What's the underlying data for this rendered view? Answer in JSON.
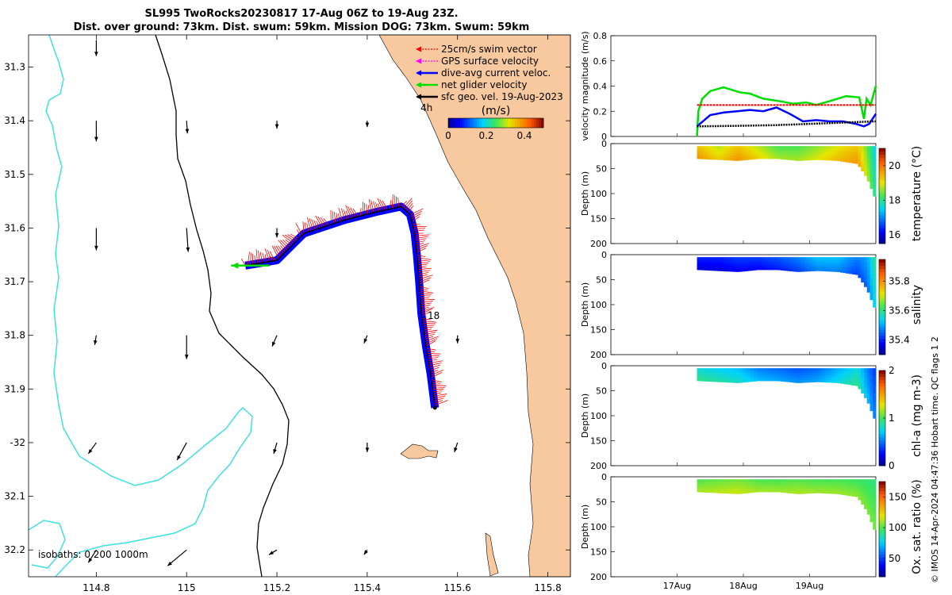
{
  "header": {
    "title_line1": "SL995 TwoRocks20230817 17-Aug 06Z to 19-Aug 23Z.",
    "title_line2": "Dist. over ground: 73km. Dist. swum: 59km. Mission DOG: 73km. Swum: 59km"
  },
  "credit": "© IMOS 14-Apr-2024 04:47:36 Hobart time. QC flags 1  2",
  "colors": {
    "land": "#f8c99e",
    "isobath_200": "#000000",
    "isobath_1000": "#3ee0e0",
    "swim": "#ff0000",
    "gps": "#ff00ff",
    "current": "#0000ff",
    "net": "#00dd00",
    "geo": "#000000"
  },
  "chart_data": [
    {
      "type": "map",
      "name": "glider track map",
      "lon_range": [
        114.65,
        115.85
      ],
      "lat_range": [
        -32.25,
        -31.24
      ],
      "x_ticks": [
        114.8,
        115,
        115.2,
        115.4,
        115.6,
        115.8
      ],
      "y_ticks": [
        -31.3,
        -31.4,
        -31.5,
        -31.6,
        -31.7,
        -31.8,
        -31.9,
        -32,
        -32.1,
        -32.2
      ],
      "y_tick_labels": [
        "31.3",
        "31.4",
        "31.5",
        "31.6",
        "31.7",
        "31.8",
        "31.9",
        "-32",
        "32.1",
        "32.2"
      ],
      "legend": [
        {
          "label": "25cm/s swim vector",
          "color": "#ff0000"
        },
        {
          "label": "GPS surface velocity",
          "color": "#ff00ff"
        },
        {
          "label": "dive-avg current veloc.",
          "color": "#0000ff"
        },
        {
          "label": "net glider velocity",
          "color": "#00dd00"
        },
        {
          "label": "sfc geo. vel. 19-Aug-2023",
          "color": "#000000"
        }
      ],
      "colorbar": {
        "title": "(m/s)",
        "range": [
          0,
          0.5
        ],
        "tick_values": [
          0,
          0.2,
          0.4
        ],
        "tick_labels": [
          "0",
          "0.2",
          "0.4"
        ]
      },
      "isobaths_label": "isobaths: 0   200  1000m",
      "track_labels": [
        "4h",
        "18"
      ],
      "track": [
        [
          115.13,
          -31.67
        ],
        [
          115.2,
          -31.66
        ],
        [
          115.26,
          -31.61
        ],
        [
          115.35,
          -31.585
        ],
        [
          115.42,
          -31.57
        ],
        [
          115.475,
          -31.56
        ],
        [
          115.495,
          -31.575
        ],
        [
          115.505,
          -31.61
        ],
        [
          115.51,
          -31.65
        ],
        [
          115.515,
          -31.7
        ],
        [
          115.52,
          -31.76
        ],
        [
          115.53,
          -31.82
        ],
        [
          115.54,
          -31.87
        ],
        [
          115.55,
          -31.935
        ]
      ],
      "geo_vectors": [
        {
          "lon": 114.8,
          "lat": -31.25,
          "u": 0,
          "v": -0.2
        },
        {
          "lon": 114.8,
          "lat": -31.4,
          "u": 0,
          "v": -0.26
        },
        {
          "lon": 115,
          "lat": -31.4,
          "u": 0.01,
          "v": -0.16
        },
        {
          "lon": 115.2,
          "lat": -31.4,
          "u": 0,
          "v": -0.1
        },
        {
          "lon": 115.4,
          "lat": -31.4,
          "u": 0,
          "v": -0.08
        },
        {
          "lon": 114.8,
          "lat": -31.6,
          "u": 0,
          "v": -0.28
        },
        {
          "lon": 115,
          "lat": -31.6,
          "u": 0.02,
          "v": -0.3
        },
        {
          "lon": 115.2,
          "lat": -31.6,
          "u": 0,
          "v": -0.12
        },
        {
          "lon": 114.8,
          "lat": -31.8,
          "u": -0.02,
          "v": -0.12
        },
        {
          "lon": 115,
          "lat": -31.8,
          "u": 0,
          "v": -0.3
        },
        {
          "lon": 115.2,
          "lat": -31.8,
          "u": -0.06,
          "v": -0.14
        },
        {
          "lon": 115.4,
          "lat": -31.8,
          "u": -0.04,
          "v": -0.1
        },
        {
          "lon": 115.6,
          "lat": -31.8,
          "u": 0,
          "v": -0.1
        },
        {
          "lon": 114.8,
          "lat": -32,
          "u": -0.1,
          "v": -0.14
        },
        {
          "lon": 115,
          "lat": -32,
          "u": -0.12,
          "v": -0.22
        },
        {
          "lon": 115.2,
          "lat": -32,
          "u": -0.04,
          "v": -0.14
        },
        {
          "lon": 115.4,
          "lat": -32,
          "u": 0,
          "v": -0.12
        },
        {
          "lon": 115.6,
          "lat": -32,
          "u": -0.04,
          "v": -0.12
        },
        {
          "lon": 114.8,
          "lat": -32.2,
          "u": -0.1,
          "v": -0.16
        },
        {
          "lon": 115,
          "lat": -32.2,
          "u": -0.24,
          "v": -0.2
        },
        {
          "lon": 115.2,
          "lat": -32.2,
          "u": -0.1,
          "v": -0.06
        },
        {
          "lon": 115.4,
          "lat": -32.2,
          "u": -0.04,
          "v": -0.06
        }
      ]
    },
    {
      "type": "line",
      "name": "velocity magnitude time series",
      "ylabel": "velocity magnitude (m/s)",
      "ylim": [
        0,
        0.8
      ],
      "y_ticks": [
        0,
        0.2,
        0.4,
        0.6,
        0.8
      ],
      "xlim_days": [
        16.0,
        20.0
      ],
      "x_ticks": [
        17,
        18,
        19
      ],
      "x_tick_labels": [
        "17Aug",
        "18Aug",
        "19Aug"
      ],
      "series": [
        {
          "name": "net glider velocity",
          "color": "#00dd00",
          "x": [
            17.3,
            17.32,
            17.38,
            17.5,
            17.7,
            17.95,
            18.1,
            18.3,
            18.55,
            18.75,
            18.95,
            19.1,
            19.3,
            19.55,
            19.75,
            19.82,
            19.86,
            19.92,
            20.0
          ],
          "y": [
            0.0,
            0.2,
            0.3,
            0.36,
            0.39,
            0.35,
            0.34,
            0.3,
            0.28,
            0.26,
            0.27,
            0.25,
            0.28,
            0.32,
            0.31,
            0.14,
            0.3,
            0.25,
            0.4
          ]
        },
        {
          "name": "25cm/s swim vector",
          "color": "#ff0000",
          "x": [
            17.3,
            20.0
          ],
          "y": [
            0.25,
            0.25
          ]
        },
        {
          "name": "dive-avg current veloc.",
          "color": "#0000ff",
          "x": [
            17.3,
            17.5,
            17.7,
            17.9,
            18.1,
            18.3,
            18.5,
            18.7,
            18.9,
            19.1,
            19.3,
            19.5,
            19.7,
            19.82,
            19.9,
            20.0
          ],
          "y": [
            0.08,
            0.17,
            0.19,
            0.2,
            0.21,
            0.2,
            0.23,
            0.18,
            0.12,
            0.13,
            0.12,
            0.12,
            0.1,
            0.08,
            0.1,
            0.18
          ]
        },
        {
          "name": "sfc geo. vel. 19-Aug-2023",
          "color": "#000000",
          "x": [
            17.3,
            18.0,
            18.5,
            19.0,
            19.5,
            20.0
          ],
          "y": [
            0.08,
            0.085,
            0.09,
            0.1,
            0.11,
            0.12
          ]
        }
      ]
    },
    {
      "type": "heatmap",
      "name": "temperature section",
      "ylabel": "Depth (m)",
      "colorbar_label": "temperature (°C)",
      "ylim": [
        200,
        0
      ],
      "y_ticks": [
        0,
        50,
        100,
        150,
        200
      ],
      "color_range": [
        15.5,
        21
      ],
      "colorbar_ticks": [
        16,
        18,
        20
      ],
      "x": [
        17.3,
        17.6,
        17.9,
        18.2,
        18.5,
        18.8,
        19.1,
        19.4,
        19.7,
        19.85,
        20.0
      ],
      "max_depth": [
        30,
        32,
        34,
        30,
        30,
        34,
        32,
        34,
        40,
        70,
        120
      ],
      "values": [
        19.5,
        19.0,
        19.5,
        19.0,
        18.5,
        18.5,
        18.8,
        19.2,
        19.5,
        18.6,
        17.5
      ]
    },
    {
      "type": "heatmap",
      "name": "salinity section",
      "ylabel": "Depth (m)",
      "colorbar_label": "salinity",
      "ylim": [
        200,
        0
      ],
      "y_ticks": [
        0,
        50,
        100,
        150,
        200
      ],
      "color_range": [
        35.3,
        35.95
      ],
      "colorbar_ticks": [
        35.4,
        35.6,
        35.8
      ],
      "x": [
        17.3,
        17.6,
        17.9,
        18.2,
        18.5,
        18.8,
        19.1,
        19.4,
        19.7,
        19.85,
        20.0
      ],
      "max_depth": [
        30,
        32,
        34,
        30,
        30,
        34,
        32,
        34,
        40,
        70,
        120
      ],
      "values": [
        35.38,
        35.38,
        35.4,
        35.4,
        35.42,
        35.45,
        35.5,
        35.5,
        35.45,
        35.48,
        35.6
      ]
    },
    {
      "type": "heatmap",
      "name": "chlorophyll section",
      "ylabel": "Depth (m)",
      "colorbar_label": "chl-a (mg m-3)",
      "ylim": [
        200,
        0
      ],
      "y_ticks": [
        0,
        50,
        100,
        150,
        200
      ],
      "color_range": [
        0,
        2
      ],
      "colorbar_ticks": [
        0,
        1,
        2
      ],
      "x": [
        17.3,
        17.6,
        17.9,
        18.2,
        18.5,
        18.8,
        19.1,
        19.4,
        19.7,
        19.85,
        20.0
      ],
      "max_depth": [
        30,
        32,
        34,
        30,
        30,
        34,
        32,
        34,
        40,
        70,
        120
      ],
      "values": [
        0.85,
        0.8,
        0.75,
        0.6,
        0.55,
        0.5,
        0.55,
        0.7,
        0.85,
        0.6,
        0.4
      ]
    },
    {
      "type": "heatmap",
      "name": "oxygen saturation section",
      "ylabel": "Depth (m)",
      "colorbar_label": "Ox. sat. ratio (%)",
      "ylim": [
        200,
        0
      ],
      "y_ticks": [
        0,
        50,
        100,
        150,
        200
      ],
      "color_range": [
        20,
        175
      ],
      "colorbar_ticks": [
        50,
        100,
        150
      ],
      "x": [
        17.3,
        17.6,
        17.9,
        18.2,
        18.5,
        18.8,
        19.1,
        19.4,
        19.7,
        19.85,
        20.0
      ],
      "max_depth": [
        30,
        32,
        34,
        30,
        30,
        34,
        32,
        34,
        40,
        70,
        120
      ],
      "values": [
        105,
        108,
        110,
        105,
        104,
        106,
        104,
        104,
        102,
        100,
        98
      ]
    }
  ]
}
